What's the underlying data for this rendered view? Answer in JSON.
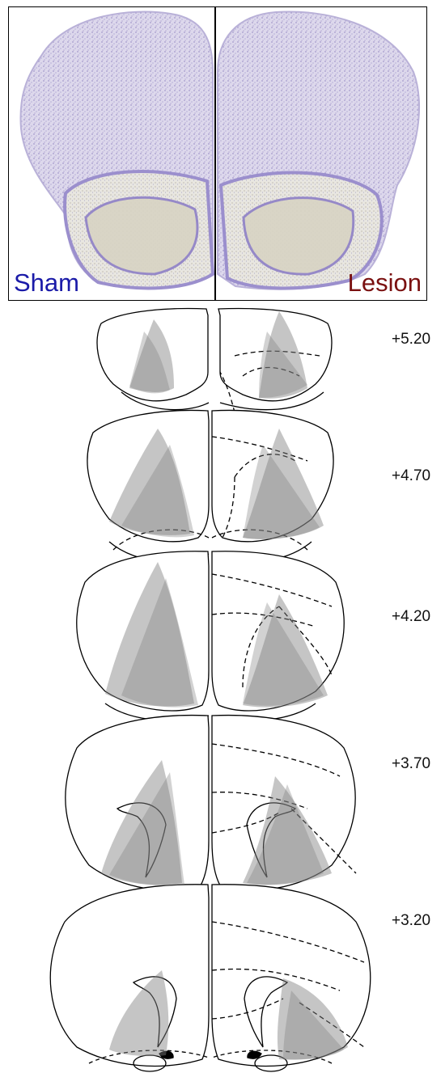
{
  "photo_panel": {
    "sham_label": "Sham",
    "lesion_label": "Lesion",
    "sham_color": "#1a1aa8",
    "lesion_color": "#7a1010"
  },
  "atlas": {
    "levels": [
      "+5.20",
      "+4.70",
      "+4.20",
      "+3.70",
      "+3.20"
    ],
    "lesion_fill_color": "#7f7f7f"
  }
}
